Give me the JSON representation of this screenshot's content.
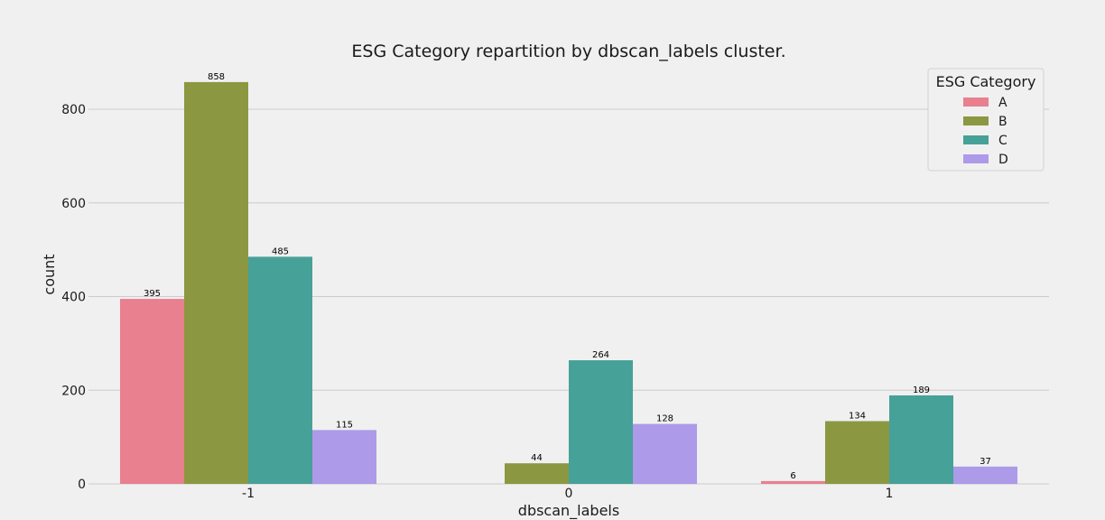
{
  "chart_data": {
    "type": "bar",
    "title": "ESG Category repartition by dbscan_labels cluster.",
    "xlabel": "dbscan_labels",
    "ylabel": "count",
    "categories": [
      "-1",
      "0",
      "1"
    ],
    "ylim": [
      0,
      900
    ],
    "yticks": [
      0,
      200,
      400,
      600,
      800
    ],
    "grid": true,
    "legend": {
      "title": "ESG Category",
      "placement": "top-right"
    },
    "series": [
      {
        "name": "A",
        "color": "#e8808f",
        "values": [
          395,
          null,
          6
        ]
      },
      {
        "name": "B",
        "color": "#8c9841",
        "values": [
          858,
          44,
          134
        ]
      },
      {
        "name": "C",
        "color": "#46a199",
        "values": [
          485,
          264,
          189
        ]
      },
      {
        "name": "D",
        "color": "#ad9ae8",
        "values": [
          115,
          128,
          37
        ]
      }
    ]
  }
}
